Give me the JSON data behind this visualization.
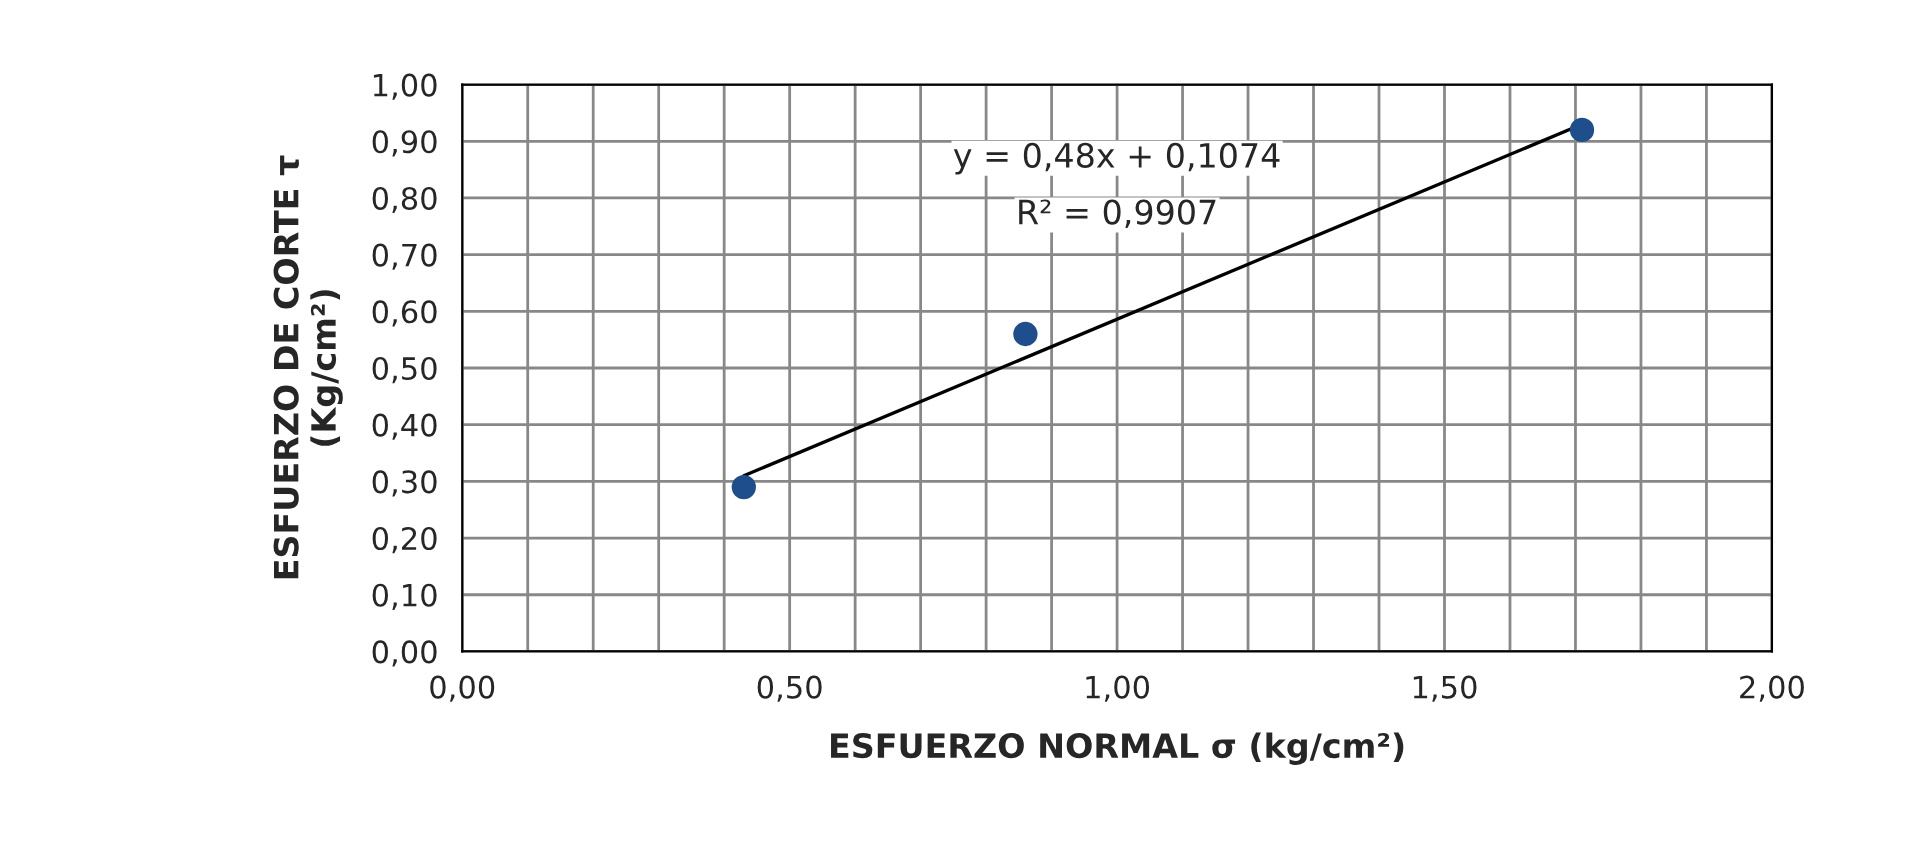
{
  "chart_data": {
    "type": "scatter",
    "xlabel": "ESFUERZO NORMAL σ (kg/cm²)",
    "ylabel": "ESFUERZO DE CORTE τ\n(Kg/cm²)",
    "series": [
      {
        "color": "#1f4e8c",
        "marker": "circle",
        "x": [
          0.43,
          0.86,
          1.71
        ],
        "values": [
          0.29,
          0.56,
          0.92
        ]
      },
      {
        "type": "line",
        "marker": "none",
        "color": "#000000",
        "x": [
          0.43,
          1.71
        ],
        "values": [
          0.31,
          0.93
        ]
      }
    ],
    "annotations": [
      "y = 0,48x + 0,1074",
      "R² = 0,9907"
    ],
    "xlim": [
      0,
      2
    ],
    "ylim": [
      0,
      1
    ],
    "xticks": [
      {
        "value": 0,
        "label": "0,00"
      },
      {
        "value": 0.1,
        "label": null
      },
      {
        "value": 0.2,
        "label": null
      },
      {
        "value": 0.3,
        "label": null
      },
      {
        "value": 0.4,
        "label": null
      },
      {
        "value": 0.5,
        "label": "0,50"
      },
      {
        "value": 0.6,
        "label": null
      },
      {
        "value": 0.7,
        "label": null
      },
      {
        "value": 0.8,
        "label": null
      },
      {
        "value": 0.9,
        "label": null
      },
      {
        "value": 1.0,
        "label": "1,00"
      },
      {
        "value": 1.1,
        "label": null
      },
      {
        "value": 1.2,
        "label": null
      },
      {
        "value": 1.3,
        "label": null
      },
      {
        "value": 1.4,
        "label": null
      },
      {
        "value": 1.5,
        "label": "1,50"
      },
      {
        "value": 1.6,
        "label": null
      },
      {
        "value": 1.7,
        "label": null
      },
      {
        "value": 1.8,
        "label": null
      },
      {
        "value": 1.9,
        "label": null
      },
      {
        "value": 2.0,
        "label": "2,00"
      }
    ],
    "yticks": [
      {
        "value": 0,
        "label": "0,00"
      },
      {
        "value": 0.1,
        "label": "0,10"
      },
      {
        "value": 0.2,
        "label": "0,20"
      },
      {
        "value": 0.3,
        "label": "0,30"
      },
      {
        "value": 0.4,
        "label": "0,40"
      },
      {
        "value": 0.5,
        "label": "0,50"
      },
      {
        "value": 0.6,
        "label": "0,60"
      },
      {
        "value": 0.7,
        "label": "0,70"
      },
      {
        "value": 0.8,
        "label": "0,80"
      },
      {
        "value": 0.9,
        "label": "0,90"
      },
      {
        "value": 1.0,
        "label": "1,00"
      }
    ],
    "grid": true
  }
}
